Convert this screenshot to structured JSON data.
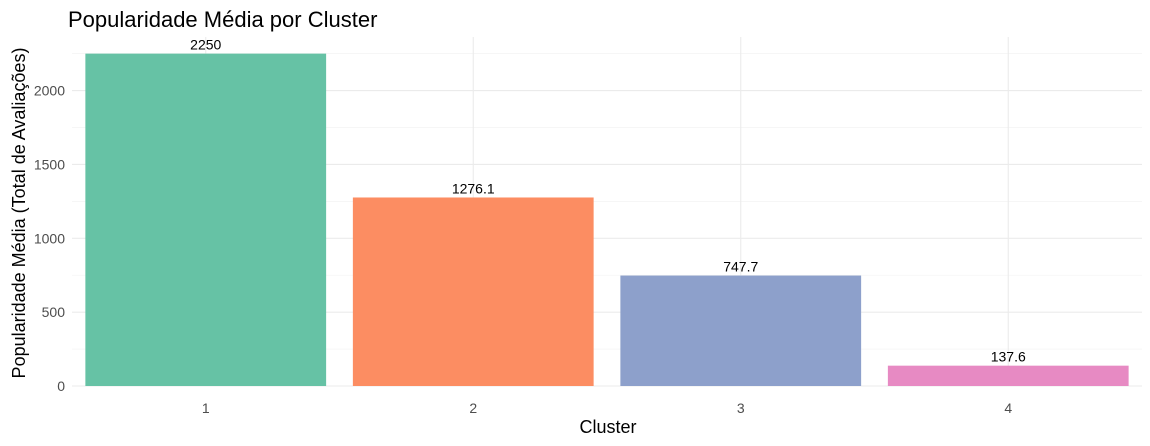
{
  "chart_data": {
    "type": "bar",
    "title": "Popularidade Média por Cluster",
    "xlabel": "Cluster",
    "ylabel": "Popularidade Média (Total de Avaliações)",
    "categories": [
      "1",
      "2",
      "3",
      "4"
    ],
    "values": [
      2250,
      1276.1,
      747.7,
      137.6
    ],
    "value_labels": [
      "2250",
      "1276.1",
      "747.7",
      "137.6"
    ],
    "colors": [
      "#66c2a5",
      "#fc8d62",
      "#8da0cb",
      "#e78ac3"
    ],
    "yticks": [
      0,
      500,
      1000,
      1500,
      2000
    ],
    "ytick_labels": [
      "0",
      "500",
      "1000",
      "1500",
      "2000"
    ],
    "ylim": [
      0,
      2362.5
    ],
    "grid": true,
    "legend": "none"
  }
}
